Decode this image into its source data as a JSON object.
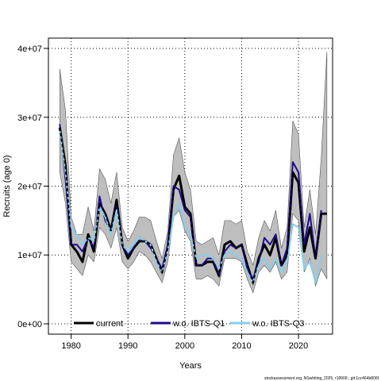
{
  "chart_data": {
    "type": "line",
    "title": "",
    "xlabel": "Years",
    "ylabel": "Recruits (age 0)",
    "xlim": [
      1976,
      2026
    ],
    "ylim": [
      -1500000,
      41500000
    ],
    "x_ticks": [
      1980,
      1990,
      2000,
      2010,
      2020
    ],
    "x_tick_labels": [
      "1980",
      "1990",
      "2000",
      "2010",
      "2020"
    ],
    "y_ticks": [
      0,
      10000000,
      20000000,
      30000000,
      40000000
    ],
    "y_tick_labels": [
      "0e+00",
      "1e+07",
      "2e+07",
      "3e+07",
      "4e+07"
    ],
    "grid": true,
    "legend_position": "bottom",
    "footnote": "stockassessment.org, NSwhiting_2025, r18909 , git:1cc464b806f",
    "colors": {
      "band": "#bebebe",
      "current": "#000000",
      "ibts_q1": "#1e0a8c",
      "ibts_q3": "#87ceeb"
    },
    "band": {
      "x": [
        1978,
        1979,
        1980,
        1981,
        1982,
        1983,
        1984,
        1985,
        1986,
        1987,
        1988,
        1989,
        1990,
        1991,
        1992,
        1993,
        1994,
        1995,
        1996,
        1997,
        1998,
        1999,
        2000,
        2001,
        2002,
        2003,
        2004,
        2005,
        2006,
        2007,
        2008,
        2009,
        2010,
        2011,
        2012,
        2013,
        2014,
        2015,
        2016,
        2017,
        2018,
        2019,
        2020,
        2021,
        2022,
        2023,
        2024,
        2025
      ],
      "lower": [
        22000000,
        17500000,
        9000000,
        8000000,
        7000000,
        10000000,
        9000000,
        14000000,
        13000000,
        11000000,
        14000000,
        9000000,
        8000000,
        9000000,
        10500000,
        10000000,
        9000000,
        7500000,
        6000000,
        9000000,
        15500000,
        16500000,
        13500000,
        12000000,
        6500000,
        6500000,
        7000000,
        6500000,
        5500000,
        9500000,
        9500000,
        9500000,
        9000000,
        6500000,
        4500000,
        7500000,
        8500000,
        7500000,
        9000000,
        6500000,
        7500000,
        16000000,
        15000000,
        7500000,
        9500000,
        5500000,
        8000000,
        6500000
      ],
      "upper": [
        37000000,
        31000000,
        15500000,
        13000000,
        13000000,
        17000000,
        13500000,
        22500000,
        21000000,
        17500000,
        22000000,
        14000000,
        12000000,
        13500000,
        15500000,
        15500000,
        15000000,
        12000000,
        9500000,
        13500000,
        24500000,
        27000000,
        22000000,
        19500000,
        12000000,
        11500000,
        12000000,
        12500000,
        10000000,
        15000000,
        15000000,
        14500000,
        15000000,
        10500000,
        8500000,
        12500000,
        15000000,
        13500000,
        16500000,
        11000000,
        14000000,
        29500000,
        27500000,
        14000000,
        19500000,
        13000000,
        24000000,
        39500000
      ]
    },
    "series": [
      {
        "name": "current",
        "x": [
          1978,
          1979,
          1980,
          1981,
          1982,
          1983,
          1984,
          1985,
          1986,
          1987,
          1988,
          1989,
          1990,
          1991,
          1992,
          1993,
          1994,
          1995,
          1996,
          1997,
          1998,
          1999,
          2000,
          2001,
          2002,
          2003,
          2004,
          2005,
          2006,
          2007,
          2008,
          2009,
          2010,
          2011,
          2012,
          2013,
          2014,
          2015,
          2016,
          2017,
          2018,
          2019,
          2020,
          2021,
          2022,
          2023,
          2024,
          2025
        ],
        "values": [
          28500000,
          23000000,
          11500000,
          10500000,
          9000000,
          13000000,
          10500000,
          17500000,
          16000000,
          13500000,
          18000000,
          11500000,
          9500000,
          11000000,
          12000000,
          12000000,
          11500000,
          9500000,
          7500000,
          11000000,
          19500000,
          21500000,
          17000000,
          16000000,
          8500000,
          8500000,
          9000000,
          9000000,
          7000000,
          11500000,
          12000000,
          11000000,
          11500000,
          8500000,
          6000000,
          9500000,
          11500000,
          10000000,
          12500000,
          8500000,
          10000000,
          22000000,
          20500000,
          10500000,
          14000000,
          9500000,
          16000000,
          16000000
        ]
      },
      {
        "name": "w.o. IBTS-Q1",
        "x": [
          1978,
          1979,
          1980,
          1981,
          1982,
          1983,
          1984,
          1985,
          1986,
          1987,
          1988,
          1989,
          1990,
          1991,
          1992,
          1993,
          1994,
          1995,
          1996,
          1997,
          1998,
          1999,
          2000,
          2001,
          2002,
          2003,
          2004,
          2005,
          2006,
          2007,
          2008,
          2009,
          2010,
          2011,
          2012,
          2013,
          2014,
          2015,
          2016,
          2017,
          2018,
          2019,
          2020,
          2021,
          2022,
          2023,
          2024
        ],
        "values": [
          29000000,
          21000000,
          11500000,
          11500000,
          10500000,
          12500000,
          11000000,
          18500000,
          15000000,
          13500000,
          17000000,
          11500000,
          10000000,
          11000000,
          12500000,
          12000000,
          11000000,
          9500000,
          8000000,
          11500000,
          20000000,
          19500000,
          16500000,
          15500000,
          8500000,
          8500000,
          9500000,
          9500000,
          7000000,
          10500000,
          11500000,
          11000000,
          11500000,
          8000000,
          6500000,
          9000000,
          12500000,
          11500000,
          13000000,
          8500000,
          11000000,
          23500000,
          22000000,
          11500000,
          16000000,
          9500000,
          16500000
        ]
      },
      {
        "name": "w.o. IBTS-Q3",
        "x": [
          1978,
          1979,
          1980,
          1981,
          1982,
          1983,
          1984,
          1985,
          1986,
          1987,
          1988,
          1989,
          1990,
          1991,
          1992,
          1993,
          1994,
          1995,
          1996,
          1997,
          1998,
          1999,
          2000,
          2001,
          2002,
          2003,
          2004,
          2005,
          2006,
          2007,
          2008,
          2009,
          2010,
          2011,
          2012,
          2013,
          2014,
          2015,
          2016,
          2017,
          2018,
          2019,
          2020,
          2021,
          2022,
          2023,
          2024
        ],
        "values": [
          28000000,
          22000000,
          14000000,
          13000000,
          11500000,
          12500000,
          12000000,
          17000000,
          15500000,
          13000000,
          16500000,
          11500000,
          10500000,
          11500000,
          12500000,
          12000000,
          11500000,
          9000000,
          7500000,
          10500000,
          15500000,
          17500000,
          14000000,
          13000000,
          9500000,
          10000000,
          10000000,
          9500000,
          8000000,
          10000000,
          10500000,
          10000000,
          9500000,
          7500000,
          6000000,
          8500000,
          9500000,
          8000000,
          9500000,
          7500000,
          9000000,
          14500000,
          14000000,
          8000000,
          9000000,
          6000000,
          10000000
        ]
      }
    ]
  }
}
